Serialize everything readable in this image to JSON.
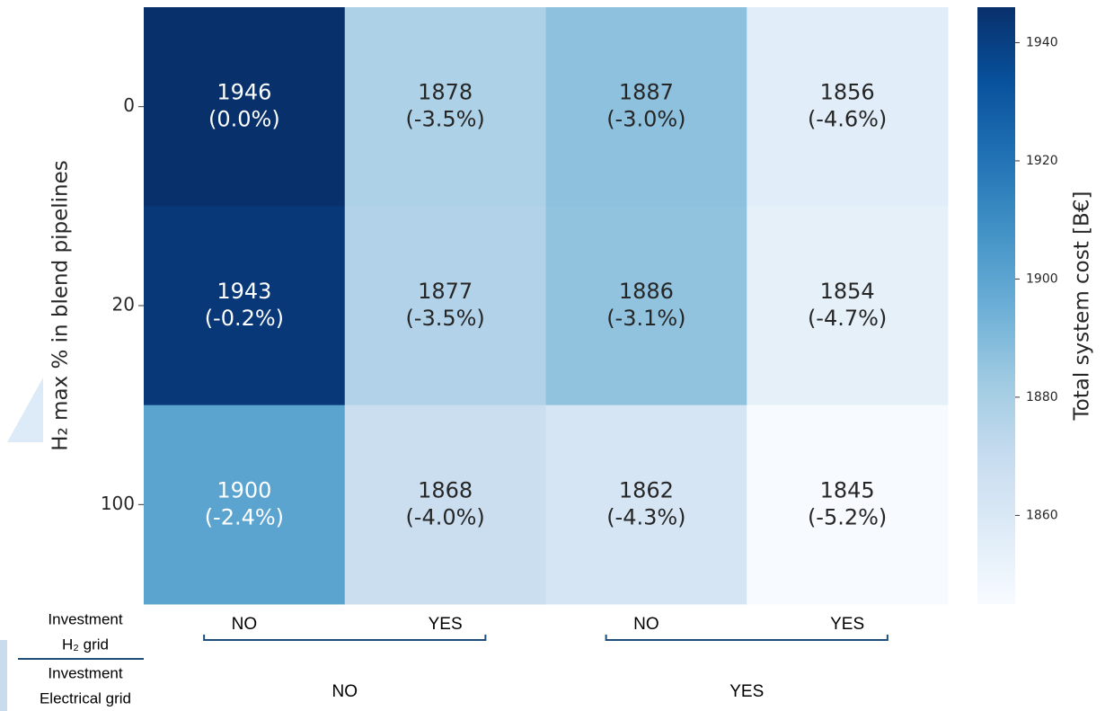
{
  "chart_data": {
    "type": "heatmap",
    "y_label": "H₂ max % in blend pipelines",
    "y_categories": [
      "0",
      "20",
      "100"
    ],
    "x_categories": [
      "NO",
      "YES",
      "NO",
      "YES"
    ],
    "x_label": [
      "Investment",
      "H₂ grid"
    ],
    "groups": [
      "NO",
      "YES"
    ],
    "group_label": [
      "Investment",
      "Electrical grid"
    ],
    "values": [
      [
        1946,
        1878,
        1887,
        1856
      ],
      [
        1943,
        1877,
        1886,
        1854
      ],
      [
        1900,
        1868,
        1862,
        1845
      ]
    ],
    "change_labels": [
      [
        "(0.0%)",
        "(-3.5%)",
        "(-3.0%)",
        "(-4.6%)"
      ],
      [
        "(-0.2%)",
        "(-3.5%)",
        "(-3.1%)",
        "(-4.7%)"
      ],
      [
        "(-2.4%)",
        "(-4.0%)",
        "(-4.3%)",
        "(-5.2%)"
      ]
    ],
    "colormap": [
      "#f7fbff",
      "#deebf7",
      "#c6dbef",
      "#9ecae1",
      "#6baed6",
      "#4292c6",
      "#2171b5",
      "#08519c",
      "#08306b"
    ],
    "clim": [
      1845,
      1946
    ],
    "colorbar_ticks": [
      1860,
      1880,
      1900,
      1920,
      1940
    ],
    "colorbar_label": "Total system cost [B€]"
  }
}
